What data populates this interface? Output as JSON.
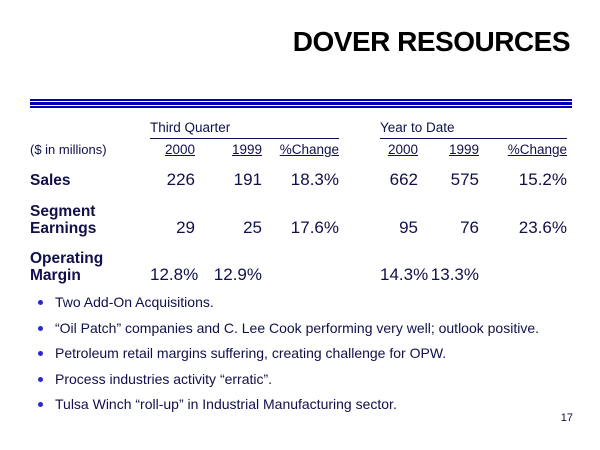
{
  "slide": {
    "title": "DOVER RESOURCES",
    "page_number": "17"
  },
  "colors": {
    "rule-blue": "#0000b0",
    "text-navy": "#10104a",
    "bullet-blue": "#2a2ac8",
    "title-black": "#000000"
  },
  "table": {
    "units_label": "($ in millions)",
    "groups": [
      {
        "label": "Third Quarter",
        "cols": [
          "2000",
          "1999",
          "%Change"
        ]
      },
      {
        "label": "Year to Date",
        "cols": [
          "2000",
          "1999",
          "%Change"
        ]
      }
    ],
    "rows": [
      {
        "label": "Sales",
        "values": [
          "226",
          "191",
          "18.3%",
          "662",
          "575",
          "15.2%"
        ]
      },
      {
        "label": "Segment\nEarnings",
        "values": [
          "29",
          "25",
          "17.6%",
          "95",
          "76",
          "23.6%"
        ]
      },
      {
        "label": "Operating\nMargin",
        "values": [
          "12.8%",
          "12.9%",
          "",
          "14.3%",
          "13.3%",
          ""
        ]
      }
    ]
  },
  "bullets": [
    "Two Add-On Acquisitions.",
    "“Oil Patch” companies and C. Lee Cook performing very well; outlook positive.",
    "Petroleum retail margins suffering, creating challenge for OPW.",
    "Process industries activity “erratic”.",
    "Tulsa Winch “roll-up” in Industrial Manufacturing sector."
  ]
}
